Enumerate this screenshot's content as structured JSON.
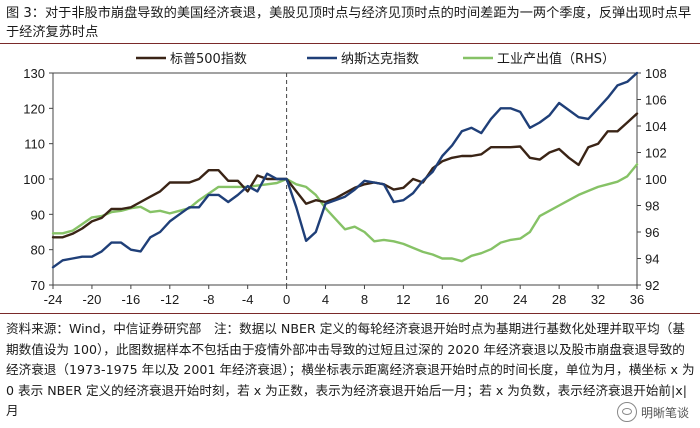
{
  "figure_title": "图 3：对于非股市崩盘导致的美国经济衰退，美股见顶时点与经济见顶时点的时间差距为一两个季度，反弹出现时点早于经济复苏时点",
  "note": "资料来源：Wind，中信证券研究部　注：数据以 NBER 定义的每轮经济衰退开始时点为基期进行基数化处理并取平均（基期数值设为 100），此图数据样本不包括由于疫情外部冲击导致的过短且过深的 2020 年经济衰退以及股市崩盘衰退导致的经济衰退（1973-1975 年以及 2001 年经济衰退）；横坐标表示距离经济衰退开始时点的时间长度，单位为月，横坐标 x 为 0 表示 NBER 定义的经济衰退开始时刻，若 x 为正数，表示为经济衰退开始后一月；若 x 为负数，表示经济衰退开始前|x|月",
  "watermark": "明晰笔谈",
  "colors": {
    "sp500": "#3a2416",
    "nasdaq": "#1f3f78",
    "ip": "#86c266",
    "rule": "#7a2a2a"
  },
  "chart_data": {
    "type": "line",
    "x": [
      -24,
      -23,
      -22,
      -21,
      -20,
      -19,
      -18,
      -17,
      -16,
      -15,
      -14,
      -13,
      -12,
      -11,
      -10,
      -9,
      -8,
      -7,
      -6,
      -5,
      -4,
      -3,
      -2,
      -1,
      0,
      1,
      2,
      3,
      4,
      5,
      6,
      7,
      8,
      9,
      10,
      11,
      12,
      13,
      14,
      15,
      16,
      17,
      18,
      19,
      20,
      21,
      22,
      23,
      24,
      25,
      26,
      27,
      28,
      29,
      30,
      31,
      32,
      33,
      34,
      35,
      36
    ],
    "xticks": [
      -24,
      -20,
      -16,
      -12,
      -8,
      -4,
      0,
      4,
      8,
      12,
      16,
      20,
      24,
      28,
      32,
      36
    ],
    "xlim": [
      -24,
      36
    ],
    "ylim": [
      70,
      130
    ],
    "yticks": [
      70,
      80,
      90,
      100,
      110,
      120,
      130
    ],
    "y2lim": [
      92,
      108
    ],
    "y2ticks": [
      92,
      94,
      96,
      98,
      100,
      102,
      104,
      106,
      108
    ],
    "zero_line_x": 0,
    "legend_position": "top",
    "series": [
      {
        "name": "标普500指数",
        "axis": "left",
        "values": [
          83.5,
          83.5,
          84.5,
          86,
          88,
          89,
          91.5,
          91.5,
          92,
          93.5,
          95,
          96.5,
          99,
          99,
          99,
          100,
          102.5,
          102.5,
          99.5,
          99.5,
          96.5,
          101,
          100,
          100,
          100,
          96.5,
          93,
          94,
          93.5,
          94.5,
          96,
          97.5,
          98.5,
          99,
          98.5,
          97,
          97.5,
          100,
          99,
          103,
          105,
          106,
          106.5,
          106.5,
          107,
          109,
          109,
          109,
          109.2,
          106,
          105.5,
          107.5,
          108.5,
          106,
          104,
          109,
          110,
          113.5,
          113.5,
          116,
          118.5
        ]
      },
      {
        "name": "纳斯达克指数",
        "axis": "left",
        "values": [
          75,
          77,
          77.5,
          78,
          78,
          79.5,
          82,
          82,
          80,
          79.5,
          83.5,
          85,
          88,
          90,
          92,
          92,
          95.5,
          95.5,
          93.5,
          95.5,
          98,
          96.5,
          101.5,
          100,
          100,
          92,
          82.5,
          85,
          93,
          94,
          95,
          97,
          99.5,
          99,
          98.5,
          93.5,
          94,
          96,
          99.5,
          102,
          106.5,
          109.5,
          113.5,
          114.5,
          113,
          117,
          120,
          120,
          119,
          114.5,
          116,
          118,
          121.5,
          119.5,
          117.5,
          117,
          120,
          123,
          126.5,
          127.5,
          130
        ]
      },
      {
        "name": "工业产出值（RHS）",
        "axis": "right",
        "values": [
          95.9,
          95.9,
          96.1,
          96.6,
          97.1,
          97.2,
          97.5,
          97.6,
          97.8,
          97.9,
          97.5,
          97.6,
          97.4,
          97.6,
          97.8,
          98.4,
          98.9,
          99.4,
          99.4,
          99.4,
          99.4,
          99.5,
          99.6,
          99.7,
          100,
          99.6,
          99.4,
          98.8,
          97.8,
          97,
          96.2,
          96.4,
          96,
          95.3,
          95.4,
          95.3,
          95.1,
          94.8,
          94.5,
          94.3,
          94,
          94,
          93.8,
          94.2,
          94.4,
          94.7,
          95.2,
          95.4,
          95.5,
          96,
          97.2,
          97.6,
          98,
          98.4,
          98.8,
          99.1,
          99.4,
          99.6,
          99.8,
          100.2,
          101.1
        ]
      }
    ]
  }
}
